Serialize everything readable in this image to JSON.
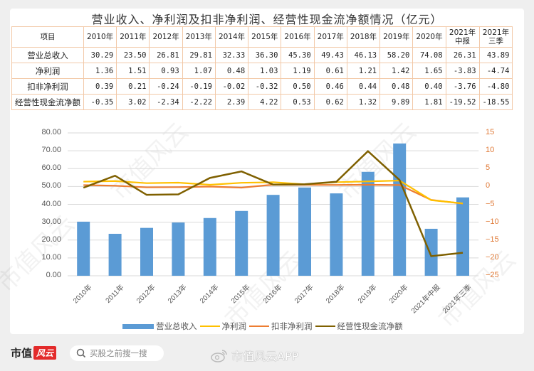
{
  "title": "营业收入、净利润及扣非净利润、经营性现金流净额情况（亿元）",
  "table": {
    "header": [
      "项目",
      "2010年",
      "2011年",
      "2012年",
      "2013年",
      "2014年",
      "2015年",
      "2016年",
      "2017年",
      "2018年",
      "2019年",
      "2020年",
      "2021年\n中报",
      "2021年\n三季"
    ],
    "header_line1": [
      "2021年",
      "2021年"
    ],
    "header_line2": [
      "中报",
      "三季"
    ],
    "rows": [
      {
        "label": "营业总收入",
        "values": [
          "30.29",
          "23.50",
          "26.81",
          "29.81",
          "32.33",
          "36.30",
          "45.30",
          "49.43",
          "46.13",
          "58.20",
          "74.08",
          "26.31",
          "43.89"
        ]
      },
      {
        "label": "净利润",
        "values": [
          "1.36",
          "1.51",
          "0.93",
          "1.07",
          "0.48",
          "1.03",
          "1.19",
          "0.61",
          "1.21",
          "1.42",
          "1.65",
          "-3.83",
          "-4.74"
        ]
      },
      {
        "label": "扣非净利润",
        "values": [
          "0.39",
          "0.21",
          "-0.24",
          "-0.19",
          "-0.02",
          "-0.32",
          "0.50",
          "0.46",
          "0.44",
          "0.48",
          "0.40",
          "-3.76",
          "-4.80"
        ]
      },
      {
        "label": "经营性现金流净额",
        "values": [
          "-0.35",
          "3.02",
          "-2.34",
          "-2.22",
          "2.39",
          "4.22",
          "0.53",
          "0.62",
          "1.32",
          "9.89",
          "1.81",
          "-19.52",
          "-18.55"
        ]
      }
    ]
  },
  "chart_data": {
    "type": "bar",
    "title": "营业收入、净利润及扣非净利润、经营性现金流净额情况（亿元）",
    "categories": [
      "2010年",
      "2011年",
      "2012年",
      "2013年",
      "2014年",
      "2015年",
      "2016年",
      "2017年",
      "2018年",
      "2019年",
      "2020年",
      "2021年中报",
      "2021年三季"
    ],
    "series": [
      {
        "name": "营业总收入",
        "type": "bar",
        "axis": "left",
        "color": "#5b9bd5",
        "values": [
          30.29,
          23.5,
          26.81,
          29.81,
          32.33,
          36.3,
          45.3,
          49.43,
          46.13,
          58.2,
          74.08,
          26.31,
          43.89
        ]
      },
      {
        "name": "净利润",
        "type": "line",
        "axis": "right",
        "color": "#ffc000",
        "values": [
          1.36,
          1.51,
          0.93,
          1.07,
          0.48,
          1.03,
          1.19,
          0.61,
          1.21,
          1.42,
          1.65,
          -3.83,
          -4.74
        ]
      },
      {
        "name": "扣非净利润",
        "type": "line",
        "axis": "right",
        "color": "#ed7d31",
        "values": [
          0.39,
          0.21,
          -0.24,
          -0.19,
          -0.02,
          -0.32,
          0.5,
          0.46,
          0.44,
          0.48,
          0.4,
          -3.76,
          -4.8
        ]
      },
      {
        "name": "经营性现金流净额",
        "type": "line",
        "axis": "right",
        "color": "#7f6000",
        "values": [
          -0.35,
          3.02,
          -2.34,
          -2.22,
          2.39,
          4.22,
          0.53,
          0.62,
          1.32,
          9.89,
          1.81,
          -19.52,
          -18.55
        ]
      }
    ],
    "y_left": {
      "ticks": [
        "80.00",
        "70.00",
        "60.00",
        "50.00",
        "40.00",
        "30.00",
        "20.00",
        "10.00",
        "0.00"
      ],
      "ylim": [
        0,
        80
      ]
    },
    "y_right": {
      "ticks": [
        "15",
        "10",
        "5",
        "0",
        "-5",
        "-10",
        "-15",
        "-20",
        "-25"
      ],
      "ylim": [
        -25,
        15
      ],
      "color": "#e07b39"
    },
    "xlabel": "",
    "ylabel": "",
    "grid": true,
    "legend_position": "bottom"
  },
  "legend": [
    "营业总收入",
    "净利润",
    "扣非净利润",
    "经营性现金流净额"
  ],
  "footer": {
    "logo_text": "市值",
    "logo_red_text": "风云",
    "search_placeholder": "买股之前搜一搜",
    "weibo_text": "市值风云APP"
  },
  "watermark": "市值风云"
}
